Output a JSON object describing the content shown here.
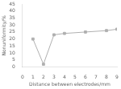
{
  "chart_data": {
    "type": "line",
    "x": [
      1,
      2,
      3,
      4,
      6,
      8,
      9
    ],
    "values": [
      20,
      2,
      23,
      24,
      25,
      26,
      27
    ],
    "xlabel": "Distance between electrodes/mm",
    "ylabel": "Nonuniformity/%",
    "xlim": [
      0,
      9
    ],
    "ylim": [
      0,
      45
    ],
    "xticks": [
      0,
      1,
      2,
      3,
      4,
      5,
      6,
      7,
      8,
      9
    ],
    "yticks": [
      0,
      5,
      10,
      15,
      20,
      25,
      30,
      35,
      40,
      45
    ],
    "color": "#b0b0b0",
    "marker": "square",
    "grid": false
  }
}
